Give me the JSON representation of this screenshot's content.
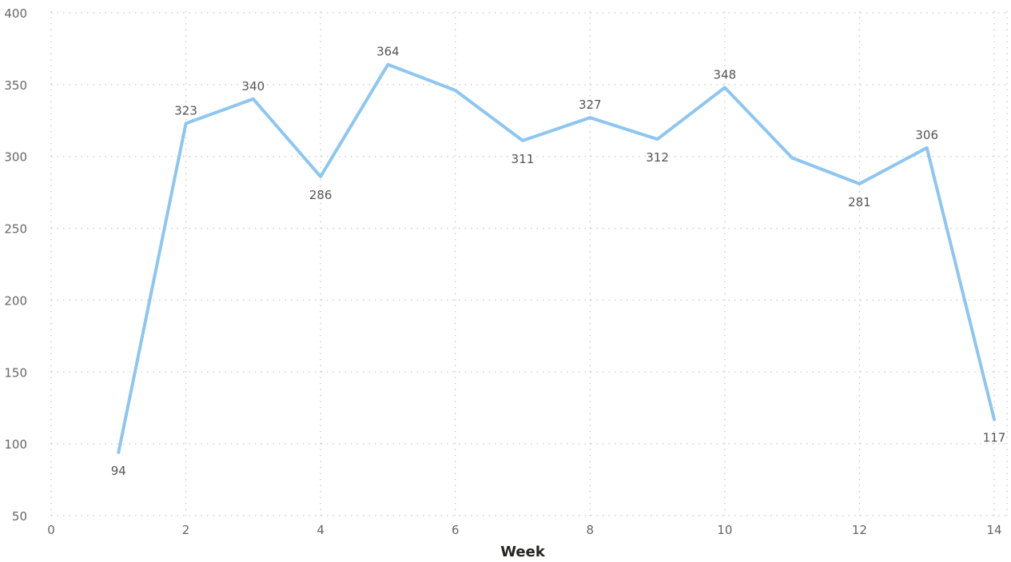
{
  "chart_data": {
    "type": "line",
    "title": "",
    "xlabel": "Week",
    "ylabel": "",
    "xlim": [
      0,
      14
    ],
    "ylim": [
      50,
      400
    ],
    "x_ticks": [
      0,
      2,
      4,
      6,
      8,
      10,
      12,
      14
    ],
    "y_ticks": [
      50,
      100,
      150,
      200,
      250,
      300,
      350,
      400
    ],
    "grid": true,
    "line_color": "#8DC6F0",
    "series": [
      {
        "x": [
          1,
          2,
          3,
          4,
          5,
          6,
          7,
          8,
          9,
          10,
          11,
          12,
          13,
          14
        ],
        "values": [
          94,
          323,
          340,
          286,
          364,
          346,
          311,
          327,
          312,
          348,
          299,
          281,
          306,
          117
        ]
      }
    ],
    "data_labels": [
      {
        "x": 1,
        "text": "94",
        "position": "below"
      },
      {
        "x": 2,
        "text": "323",
        "position": "above"
      },
      {
        "x": 3,
        "text": "340",
        "position": "above"
      },
      {
        "x": 4,
        "text": "286",
        "position": "below"
      },
      {
        "x": 5,
        "text": "364",
        "position": "above"
      },
      {
        "x": 7,
        "text": "311",
        "position": "below"
      },
      {
        "x": 8,
        "text": "327",
        "position": "above"
      },
      {
        "x": 9,
        "text": "312",
        "position": "below"
      },
      {
        "x": 10,
        "text": "348",
        "position": "above"
      },
      {
        "x": 12,
        "text": "281",
        "position": "below"
      },
      {
        "x": 13,
        "text": "306",
        "position": "above"
      },
      {
        "x": 14,
        "text": "117",
        "position": "below"
      }
    ]
  }
}
